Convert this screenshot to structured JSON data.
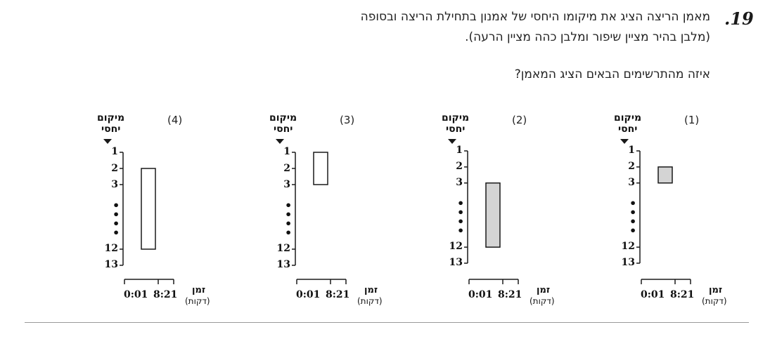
{
  "question": {
    "number": ".19",
    "line1": "מאמן הריצה הציג את מיקומו היחסי של אמנון בתחילת הריצה ובסופה",
    "line2": "(מלבן בהיר מציין שיפור ומלבן כהה מציין הרעה).",
    "line3": "איזה מהתרשימים הבאים הציג המאמן?"
  },
  "colors": {
    "filled": "#d4d4d4",
    "empty": "#ffffff",
    "stroke": "#1a1a1a"
  },
  "options": [
    {
      "label": "(1)",
      "ylabel1": "מיקום",
      "ylabel2": "יחסי",
      "y_ticks": [
        "1",
        "2",
        "3",
        "12",
        "13"
      ],
      "ellipsis": [
        "•",
        "•",
        "•",
        "•"
      ],
      "x_ticks": [
        "0:01",
        "8:21"
      ],
      "xlabel1": "זמן",
      "xlabel2": "(דקות)"
    },
    {
      "label": "(2)",
      "ylabel1": "מיקום",
      "ylabel2": "יחסי",
      "y_ticks": [
        "1",
        "2",
        "3",
        "12",
        "13"
      ],
      "ellipsis": [
        "•",
        "•",
        "•",
        "•"
      ],
      "x_ticks": [
        "0:01",
        "8:21"
      ],
      "xlabel1": "זמן",
      "xlabel2": "(דקות)"
    },
    {
      "label": "(3)",
      "ylabel1": "מיקום",
      "ylabel2": "יחסי",
      "y_ticks": [
        "1",
        "2",
        "3",
        "12",
        "13"
      ],
      "ellipsis": [
        "•",
        "•",
        "•",
        "•"
      ],
      "x_ticks": [
        "0:01",
        "8:21"
      ],
      "xlabel1": "זמן",
      "xlabel2": "(דקות)"
    },
    {
      "label": "(4)",
      "ylabel1": "מיקום",
      "ylabel2": "יחסי",
      "y_ticks": [
        "1",
        "2",
        "3",
        "12",
        "13"
      ],
      "ellipsis": [
        "•",
        "•",
        "•",
        "•"
      ],
      "x_ticks": [
        "0:01",
        "8:21"
      ],
      "xlabel1": "זמן",
      "xlabel2": "(דקות)"
    }
  ],
  "chart_data": [
    {
      "type": "bar",
      "option": "(1)",
      "y_range": [
        1,
        13
      ],
      "y_inverted": true,
      "bar": {
        "from": 2,
        "to": 3,
        "fill": "dark"
      }
    },
    {
      "type": "bar",
      "option": "(2)",
      "y_range": [
        1,
        13
      ],
      "y_inverted": true,
      "bar": {
        "from": 3,
        "to": 12,
        "fill": "dark"
      }
    },
    {
      "type": "bar",
      "option": "(3)",
      "y_range": [
        1,
        13
      ],
      "y_inverted": true,
      "bar": {
        "from": 1,
        "to": 3,
        "fill": "light"
      }
    },
    {
      "type": "bar",
      "option": "(4)",
      "y_range": [
        2,
        12
      ],
      "y_inverted": true,
      "bar": {
        "from": 2,
        "to": 12,
        "fill": "light"
      }
    }
  ]
}
